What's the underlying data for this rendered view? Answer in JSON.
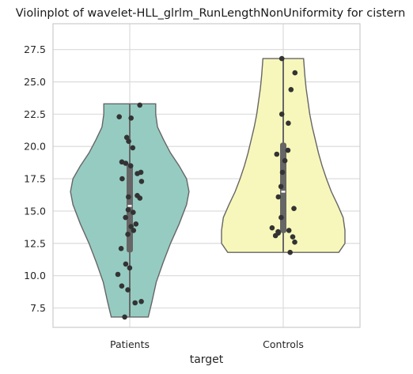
{
  "chart_data": {
    "type": "violin",
    "title": "Violinplot of wavelet-HLL_glrlm_RunLengthNonUniformity for cistern",
    "xlabel": "target",
    "ylabel": "",
    "ylim": [
      6.0,
      29.5
    ],
    "yticks": [
      7.5,
      10.0,
      12.5,
      15.0,
      17.5,
      20.0,
      22.5,
      25.0,
      27.5
    ],
    "ytick_labels": [
      "7.5",
      "10.0",
      "12.5",
      "15.0",
      "17.5",
      "20.0",
      "22.5",
      "25.0",
      "27.5"
    ],
    "grid": true,
    "categories": [
      "Patients",
      "Controls"
    ],
    "series": [
      {
        "category": "Patients",
        "color": "#96cbc2",
        "min": 6.8,
        "q1": 11.8,
        "median": 15.4,
        "q3": 18.7,
        "max": 23.3,
        "density": [
          [
            6.8,
            0.3
          ],
          [
            8.0,
            0.36
          ],
          [
            9.5,
            0.43
          ],
          [
            11.0,
            0.54
          ],
          [
            12.5,
            0.66
          ],
          [
            14.0,
            0.8
          ],
          [
            15.5,
            0.92
          ],
          [
            16.5,
            0.96
          ],
          [
            17.5,
            0.92
          ],
          [
            18.5,
            0.8
          ],
          [
            19.5,
            0.66
          ],
          [
            20.5,
            0.55
          ],
          [
            21.5,
            0.45
          ],
          [
            22.5,
            0.42
          ],
          [
            23.3,
            0.42
          ]
        ],
        "points": [
          23.2,
          22.3,
          22.2,
          20.7,
          20.4,
          19.9,
          18.8,
          18.7,
          18.5,
          18.0,
          17.9,
          17.5,
          17.3,
          16.2,
          16.1,
          16.0,
          15.1,
          14.9,
          14.5,
          14.0,
          13.8,
          13.5,
          13.2,
          12.1,
          10.9,
          10.6,
          10.1,
          9.2,
          8.9,
          8.0,
          7.9,
          6.8
        ]
      },
      {
        "category": "Controls",
        "color": "#f7f7bb",
        "min": 11.8,
        "q1": 13.3,
        "median": 16.5,
        "q3": 20.3,
        "max": 26.8,
        "density": [
          [
            11.8,
            0.9
          ],
          [
            12.5,
            1.0
          ],
          [
            13.5,
            1.0
          ],
          [
            14.5,
            0.97
          ],
          [
            15.5,
            0.88
          ],
          [
            16.5,
            0.78
          ],
          [
            17.5,
            0.7
          ],
          [
            18.5,
            0.63
          ],
          [
            19.5,
            0.57
          ],
          [
            20.5,
            0.52
          ],
          [
            21.5,
            0.47
          ],
          [
            22.5,
            0.43
          ],
          [
            23.5,
            0.4
          ],
          [
            24.5,
            0.37
          ],
          [
            25.5,
            0.35
          ],
          [
            26.8,
            0.33
          ]
        ],
        "points": [
          26.8,
          25.7,
          24.4,
          22.5,
          21.8,
          19.7,
          19.4,
          18.9,
          18.0,
          16.9,
          16.1,
          15.2,
          14.5,
          13.7,
          13.5,
          13.4,
          13.3,
          13.1,
          13.0,
          12.6,
          11.8
        ]
      }
    ]
  }
}
